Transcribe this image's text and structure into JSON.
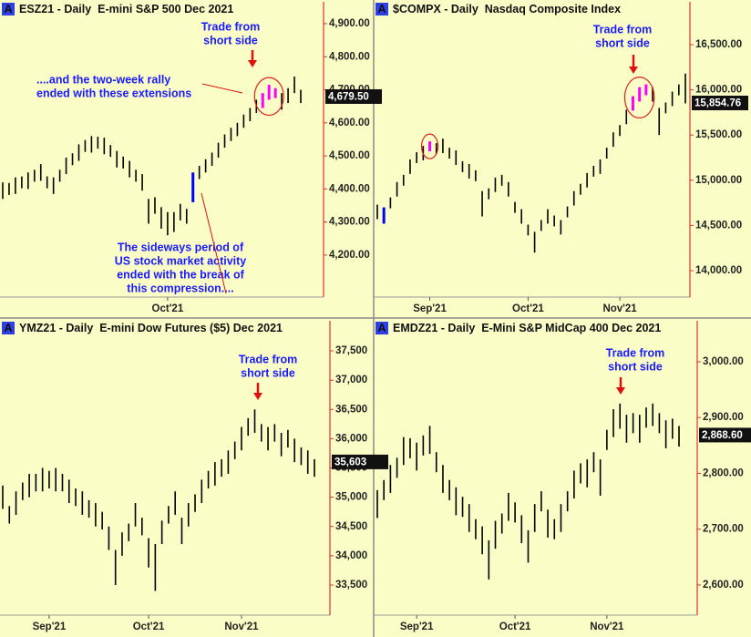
{
  "chart_data": [
    {
      "type": "range-bar",
      "badge": "A",
      "title": "ESZ21 - Daily  E-mini S&P 500 Dec 2021",
      "bar_color": "#000000",
      "categories": [
        null,
        null,
        null,
        null,
        null,
        null,
        null,
        null,
        null,
        null,
        null,
        null,
        null,
        null,
        null,
        null,
        null,
        null,
        null,
        null,
        null,
        null,
        null,
        null,
        null,
        null,
        "Oct'21",
        null,
        null,
        null,
        null,
        null,
        null,
        null,
        null,
        null,
        null,
        null,
        null,
        null,
        null,
        null,
        null,
        null,
        null,
        null,
        null,
        null
      ],
      "high": [
        4420,
        4418,
        4435,
        4438,
        4450,
        4458,
        4475,
        4438,
        4435,
        4458,
        4495,
        4508,
        4535,
        4548,
        4560,
        4558,
        4555,
        4533,
        4515,
        4498,
        4485,
        4458,
        4445,
        4370,
        4375,
        4345,
        4330,
        4330,
        4355,
        4340,
        4450,
        4470,
        4490,
        4510,
        4540,
        4565,
        4585,
        4600,
        4625,
        4645,
        4670,
        4690,
        4715,
        4705,
        4690,
        4705,
        4740,
        4700
      ],
      "low": [
        4370,
        4382,
        4385,
        4402,
        4400,
        4422,
        4425,
        4402,
        4385,
        4422,
        4445,
        4472,
        4485,
        4512,
        4510,
        4522,
        4505,
        4497,
        4465,
        4462,
        4435,
        4422,
        4395,
        4295,
        4325,
        4280,
        4260,
        4270,
        4305,
        4295,
        4360,
        4430,
        4450,
        4470,
        4495,
        4525,
        4545,
        4560,
        4585,
        4605,
        4630,
        4645,
        4670,
        4675,
        4640,
        4660,
        4690,
        4660
      ],
      "highlights": [
        {
          "bars": [
            30
          ],
          "color": "#0000ff"
        },
        {
          "bars": [
            41,
            42,
            43
          ],
          "color": "#ff00ff",
          "circled": true
        }
      ],
      "ylim": [
        4073,
        4922
      ],
      "yticks": [
        {
          "value": 4200,
          "label": "4,200.00"
        },
        {
          "value": 4300,
          "label": "4,300.00"
        },
        {
          "value": 4400,
          "label": "4,400.00"
        },
        {
          "value": 4500,
          "label": "4,500.00"
        },
        {
          "value": 4600,
          "label": "4,600.00"
        },
        {
          "value": 4700,
          "label": "4,700.00"
        },
        {
          "value": 4800,
          "label": "4,800.00"
        },
        {
          "value": 4900,
          "label": "4,900.00"
        }
      ],
      "last": {
        "value": 4679.5,
        "label": "4,679.50"
      },
      "annotations": [
        [
          "Trade from",
          "short side"
        ],
        [
          "....and the two-week rally",
          "ended with these extensions"
        ],
        [
          "The sideways period of",
          "US stock market activity",
          "ended with the break of",
          "this compression...."
        ]
      ]
    },
    {
      "type": "range-bar",
      "badge": "A",
      "title": "$COMPX - Daily  Nasdaq Composite Index",
      "bar_color": "#000000",
      "categories": [
        null,
        null,
        null,
        null,
        null,
        null,
        null,
        null,
        "Sep'21",
        null,
        null,
        null,
        null,
        null,
        null,
        null,
        null,
        null,
        null,
        null,
        null,
        null,
        null,
        "Oct'21",
        null,
        null,
        null,
        null,
        null,
        null,
        null,
        null,
        null,
        null,
        null,
        null,
        null,
        "Nov'21",
        null,
        null,
        null,
        null,
        null,
        null,
        null,
        null,
        null,
        null
      ],
      "high": [
        14730,
        14700,
        14810,
        14980,
        15060,
        15230,
        15310,
        15380,
        15430,
        15410,
        15460,
        15360,
        15330,
        15210,
        15180,
        15110,
        14880,
        14910,
        15030,
        15060,
        14980,
        14760,
        14680,
        14510,
        14430,
        14560,
        14680,
        14610,
        14560,
        14710,
        14880,
        14960,
        15080,
        15160,
        15230,
        15360,
        15530,
        15610,
        15780,
        15930,
        16030,
        16060,
        16030,
        15800,
        15860,
        15980,
        16060,
        16180
      ],
      "low": [
        14570,
        14520,
        14690,
        14820,
        14940,
        15070,
        15190,
        15220,
        15320,
        15290,
        15300,
        15240,
        15170,
        15090,
        15020,
        14990,
        14600,
        14790,
        14870,
        14940,
        14820,
        14640,
        14520,
        14390,
        14200,
        14440,
        14520,
        14490,
        14400,
        14590,
        14720,
        14840,
        14920,
        15040,
        15070,
        15240,
        15370,
        15490,
        15620,
        15770,
        15870,
        15940,
        15870,
        15500,
        15740,
        15820,
        15940,
        15850
      ],
      "highlights": [
        {
          "bars": [
            1
          ],
          "color": "#0000ff"
        },
        {
          "bars": [
            8
          ],
          "color": "#ff00ff",
          "circled": true
        },
        {
          "bars": [
            39,
            40,
            41
          ],
          "color": "#ff00ff",
          "circled": true
        }
      ],
      "ylim": [
        13708,
        16812
      ],
      "yticks": [
        {
          "value": 14000,
          "label": "14,000.00"
        },
        {
          "value": 14500,
          "label": "14,500.00"
        },
        {
          "value": 15000,
          "label": "15,000.00"
        },
        {
          "value": 15500,
          "label": "15,500.00"
        },
        {
          "value": 16000,
          "label": "16,000.00"
        },
        {
          "value": 16500,
          "label": "16,500.00"
        }
      ],
      "last": {
        "value": 15854.76,
        "label": "15,854.76"
      },
      "annotations": [
        [
          "Trade from",
          "short side"
        ]
      ]
    },
    {
      "type": "range-bar",
      "badge": "A",
      "title": "YMZ21 - Daily  E-mini Dow Futures ($5) Dec 2021",
      "bar_color": "#000000",
      "categories": [
        null,
        null,
        null,
        null,
        null,
        null,
        null,
        "Sep'21",
        null,
        null,
        null,
        null,
        null,
        null,
        null,
        null,
        null,
        null,
        null,
        null,
        null,
        null,
        "Oct'21",
        null,
        null,
        null,
        null,
        null,
        null,
        null,
        null,
        null,
        null,
        null,
        null,
        null,
        "Nov'21",
        null,
        null,
        null,
        null,
        null,
        null,
        null,
        null,
        null,
        null,
        null
      ],
      "high": [
        35200,
        34850,
        35100,
        35250,
        35400,
        35400,
        35500,
        35450,
        35500,
        35400,
        35300,
        35150,
        35100,
        34950,
        34900,
        34750,
        34500,
        34100,
        34400,
        34550,
        34900,
        34650,
        34300,
        34200,
        34600,
        34850,
        35100,
        34650,
        34900,
        35050,
        35300,
        35450,
        35600,
        35650,
        35800,
        35950,
        36200,
        36350,
        36500,
        36250,
        36200,
        36250,
        36100,
        36150,
        36000,
        35850,
        35800,
        35650
      ],
      "low": [
        34800,
        34550,
        34700,
        34950,
        35000,
        35100,
        35100,
        35150,
        35100,
        35100,
        34900,
        34850,
        34700,
        34650,
        34500,
        34450,
        34100,
        33500,
        34000,
        34250,
        34500,
        34350,
        33800,
        33400,
        34200,
        34550,
        34700,
        34200,
        34500,
        34750,
        34900,
        35150,
        35200,
        35350,
        35400,
        35650,
        35800,
        36050,
        36100,
        35950,
        35800,
        35950,
        35700,
        35850,
        35600,
        35550,
        35400,
        35350
      ],
      "ylim": [
        32986,
        37734
      ],
      "yticks": [
        {
          "value": 33500,
          "label": "33,500"
        },
        {
          "value": 34000,
          "label": "34,000"
        },
        {
          "value": 34500,
          "label": "34,500"
        },
        {
          "value": 35000,
          "label": "35,000"
        },
        {
          "value": 35500,
          "label": "35,500"
        },
        {
          "value": 36000,
          "label": "36,000"
        },
        {
          "value": 36500,
          "label": "36,500"
        },
        {
          "value": 37000,
          "label": "37,000"
        },
        {
          "value": 37500,
          "label": "37,500"
        }
      ],
      "last": {
        "value": 35603,
        "label": "35,603"
      },
      "annotations": [
        [
          "Trade from",
          "short side"
        ]
      ]
    },
    {
      "type": "range-bar",
      "badge": "A",
      "title": "EMDZ21 - Daily  E-Mini S&P MidCap 400 Dec 2021",
      "bar_color": "#000000",
      "categories": [
        null,
        null,
        null,
        null,
        null,
        null,
        "Sep'21",
        null,
        null,
        null,
        null,
        null,
        null,
        null,
        null,
        null,
        null,
        null,
        null,
        null,
        null,
        "Oct'21",
        null,
        null,
        null,
        null,
        null,
        null,
        null,
        null,
        null,
        null,
        null,
        null,
        null,
        "Nov'21",
        null,
        null,
        null,
        null,
        null,
        null,
        null,
        null,
        null,
        null,
        null
      ],
      "high": [
        2770,
        2788,
        2815,
        2828,
        2865,
        2863,
        2855,
        2868,
        2885,
        2838,
        2815,
        2788,
        2775,
        2758,
        2745,
        2718,
        2705,
        2680,
        2715,
        2728,
        2765,
        2748,
        2725,
        2698,
        2745,
        2768,
        2735,
        2718,
        2745,
        2768,
        2805,
        2818,
        2825,
        2838,
        2825,
        2878,
        2915,
        2925,
        2905,
        2908,
        2905,
        2918,
        2925,
        2908,
        2895,
        2898,
        2885
      ],
      "low": [
        2720,
        2752,
        2765,
        2792,
        2815,
        2827,
        2805,
        2832,
        2835,
        2802,
        2765,
        2752,
        2725,
        2722,
        2695,
        2682,
        2655,
        2610,
        2665,
        2692,
        2715,
        2712,
        2675,
        2640,
        2695,
        2732,
        2685,
        2682,
        2695,
        2732,
        2755,
        2782,
        2775,
        2802,
        2760,
        2842,
        2865,
        2880,
        2855,
        2872,
        2855,
        2882,
        2885,
        2872,
        2845,
        2862,
        2848
      ],
      "ylim": [
        2546,
        3044
      ],
      "yticks": [
        {
          "value": 2600,
          "label": "2,600.00"
        },
        {
          "value": 2700,
          "label": "2,700.00"
        },
        {
          "value": 2800,
          "label": "2,800.00"
        },
        {
          "value": 2900,
          "label": "2,900.00"
        },
        {
          "value": 3000,
          "label": "3,000.00"
        }
      ],
      "last": {
        "value": 2868.6,
        "label": "2,868.60"
      },
      "annotations": [
        [
          "Trade from",
          "short side"
        ]
      ]
    }
  ]
}
